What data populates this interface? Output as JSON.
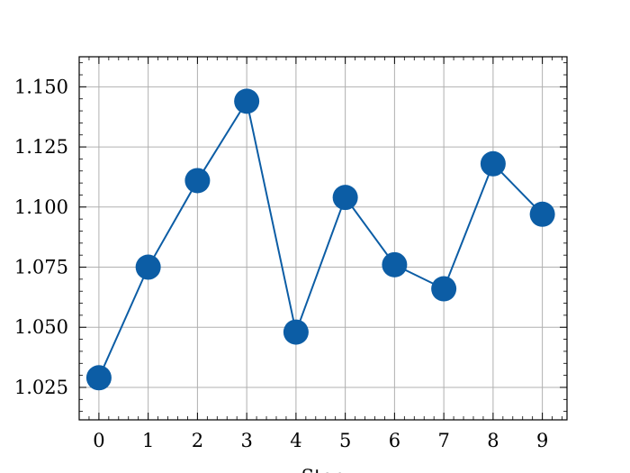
{
  "chart_data": {
    "type": "line",
    "title": "",
    "xlabel": "Step",
    "ylabel": "",
    "x": [
      0,
      1,
      2,
      3,
      4,
      5,
      6,
      7,
      8,
      9
    ],
    "y": [
      1.029,
      1.075,
      1.111,
      1.144,
      1.048,
      1.104,
      1.076,
      1.066,
      1.118,
      1.097
    ],
    "xticks": [
      "0",
      "1",
      "2",
      "3",
      "4",
      "5",
      "6",
      "7",
      "8",
      "9"
    ],
    "yticks": [
      "1.025",
      "1.050",
      "1.075",
      "1.100",
      "1.125",
      "1.150"
    ],
    "xlim": [
      -0.4,
      9.5
    ],
    "ylim": [
      1.0115,
      1.1625
    ],
    "grid": true,
    "legend": "none",
    "colors": {
      "line": "#0c5da5",
      "marker": "#0c5da5",
      "grid": "#b0b0b0",
      "axis": "#000000"
    }
  }
}
